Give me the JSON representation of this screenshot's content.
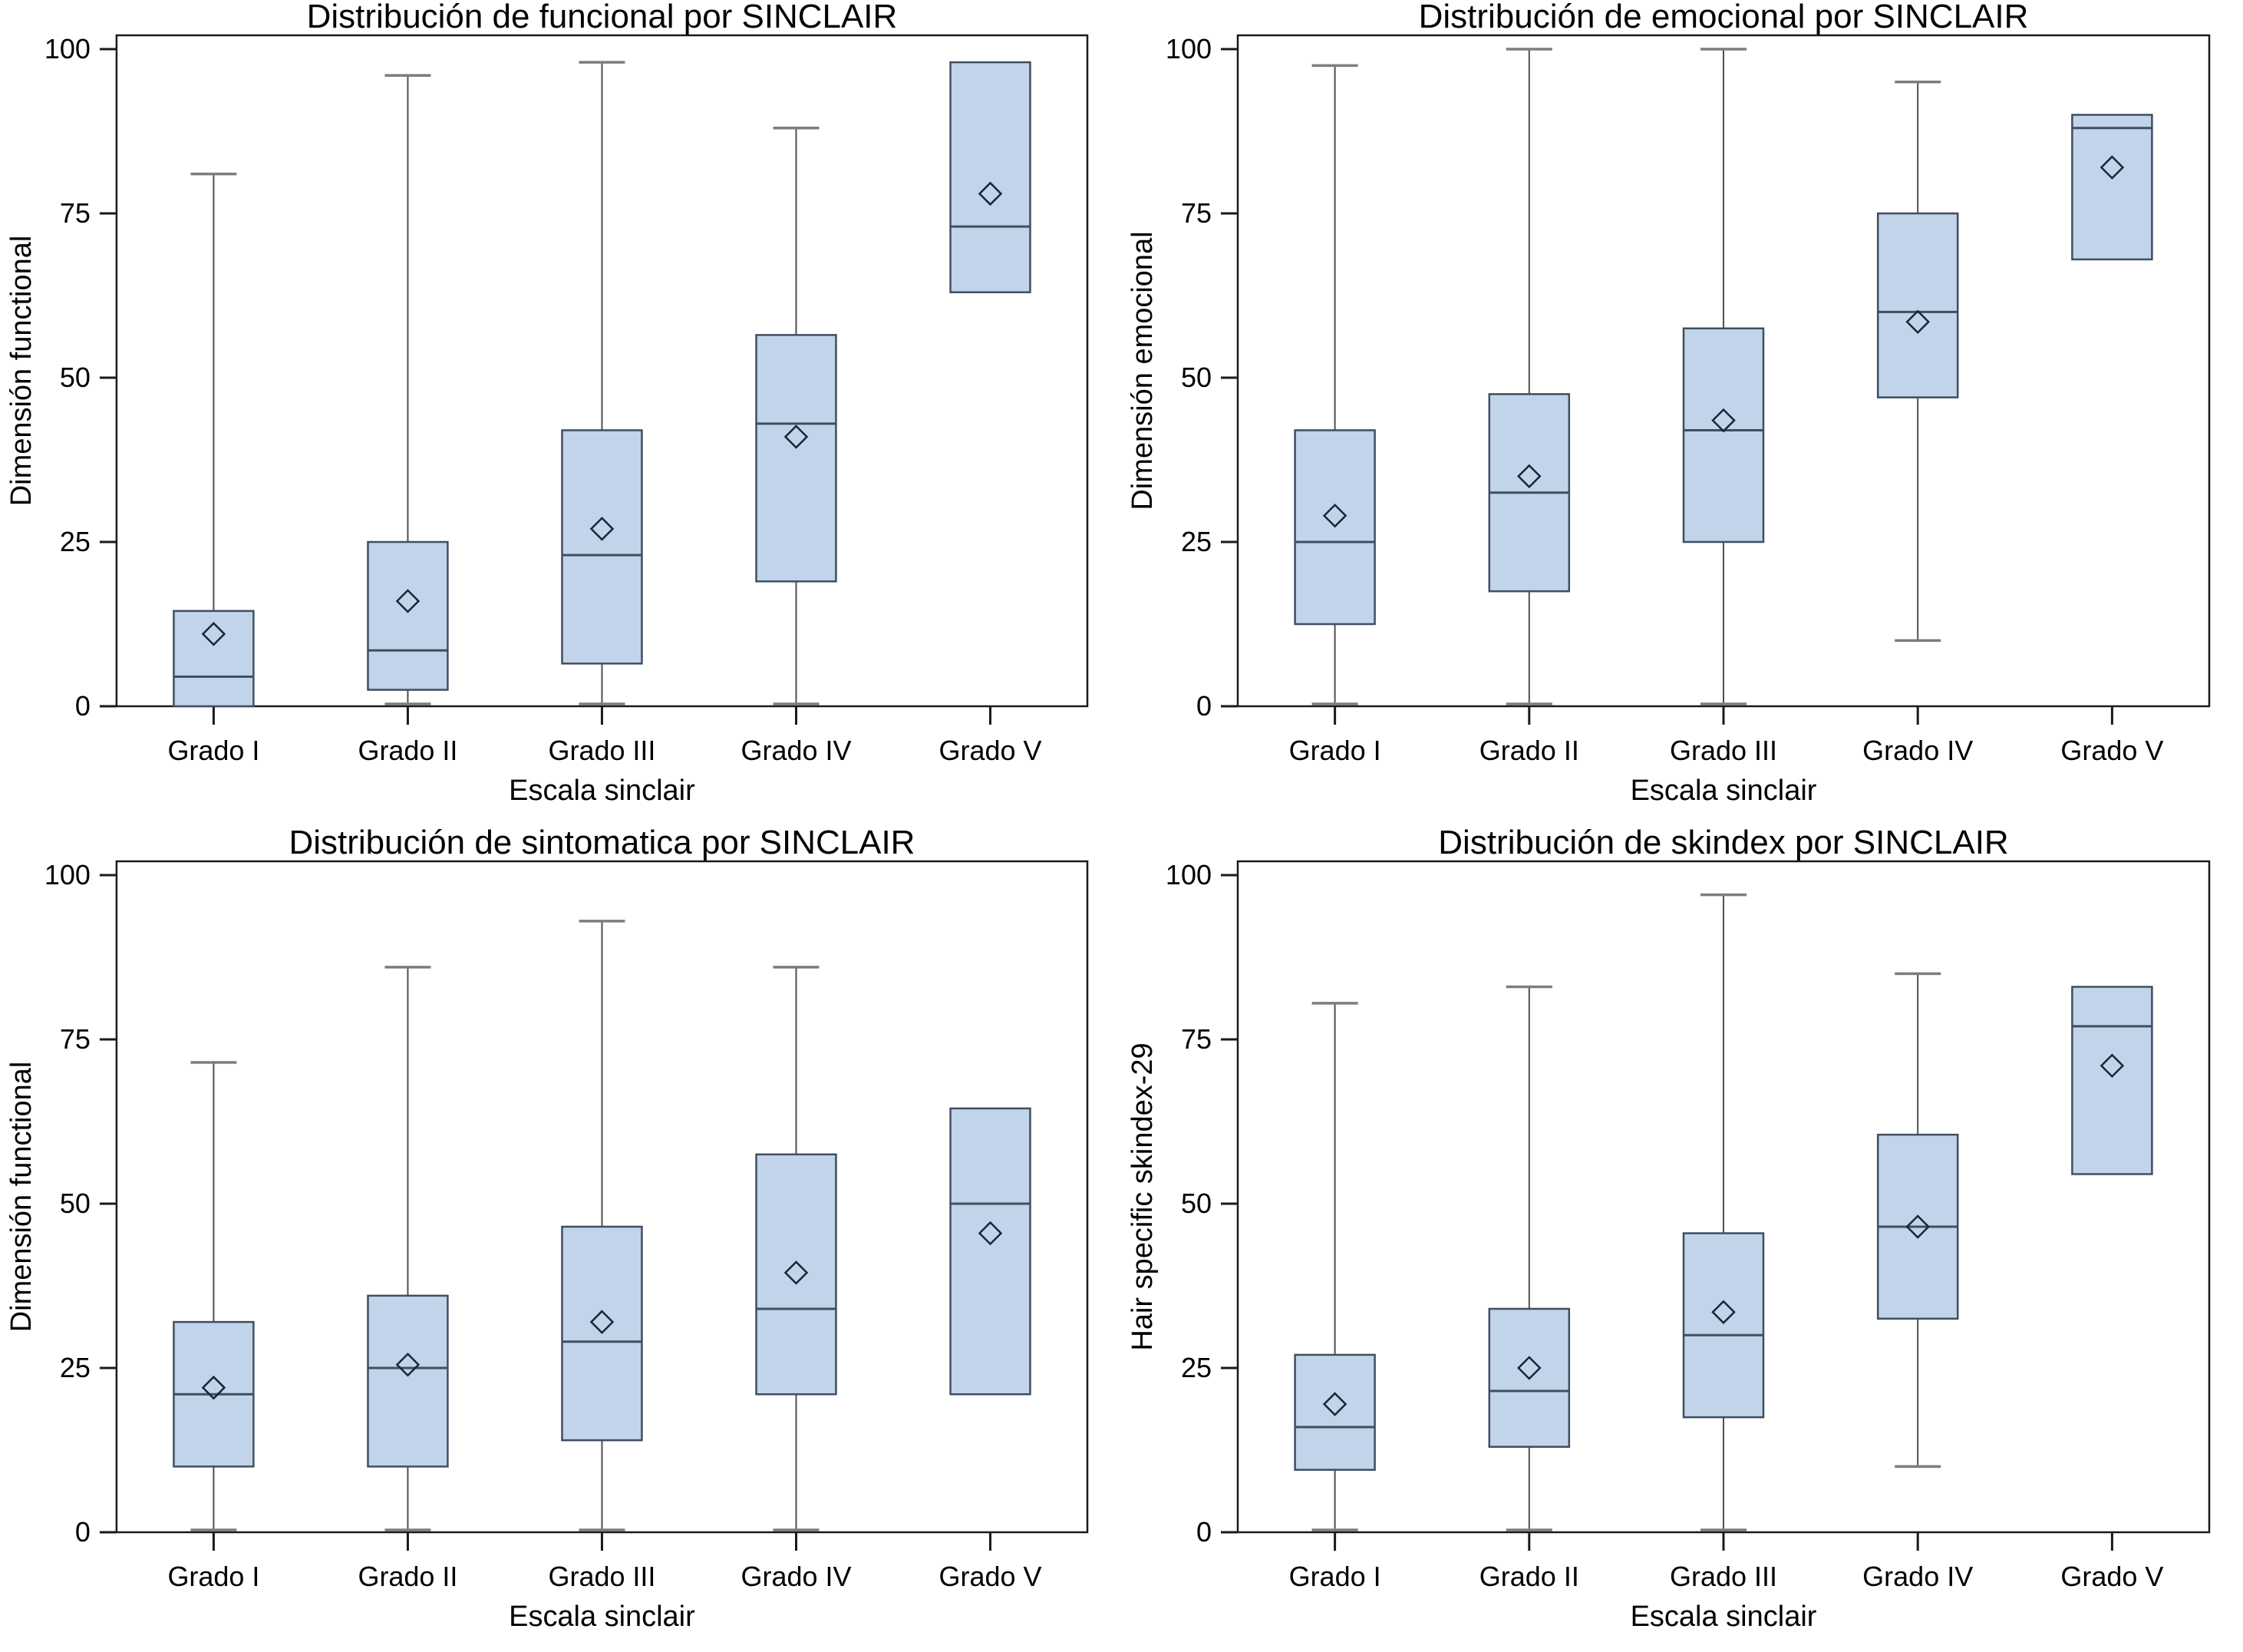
{
  "style": {
    "background": "#ffffff",
    "box_fill": "#c2d4ea",
    "box_stroke": "#3f4e61",
    "median_color": "#3f4e61",
    "mean_marker_color": "#17263a",
    "whisker_color": "#4f4f4f",
    "whisker_cap_color": "#7d7d7d",
    "axis_color": "#1a1a1a",
    "text_color": "#000000"
  },
  "chart_data": [
    {
      "type": "box",
      "title": "Distribución de funcional por SINCLAIR",
      "xlabel": "Escala sinclair",
      "ylabel": "Dimensión functional",
      "ylim": [
        0,
        100
      ],
      "yticks": [
        0,
        25,
        50,
        75,
        100
      ],
      "grid": false,
      "categories": [
        "Grado I",
        "Grado II",
        "Grado III",
        "Grado IV",
        "Grado V"
      ],
      "boxes": [
        {
          "category": "Grado I",
          "whisker_low": 0,
          "q1": 0,
          "median": 4.5,
          "q3": 14.5,
          "whisker_high": 81,
          "mean": 11
        },
        {
          "category": "Grado II",
          "whisker_low": 0,
          "q1": 2.5,
          "median": 8.5,
          "q3": 25,
          "whisker_high": 96,
          "mean": 16
        },
        {
          "category": "Grado III",
          "whisker_low": 0,
          "q1": 6.5,
          "median": 23,
          "q3": 42,
          "whisker_high": 98,
          "mean": 27
        },
        {
          "category": "Grado IV",
          "whisker_low": 0,
          "q1": 19,
          "median": 43,
          "q3": 56.5,
          "whisker_high": 88,
          "mean": 41
        },
        {
          "category": "Grado V",
          "whisker_low": 63,
          "q1": 63,
          "median": 73,
          "q3": 98,
          "whisker_high": 98,
          "mean": 78
        }
      ]
    },
    {
      "type": "box",
      "title": "Distribución de emocional por SINCLAIR",
      "xlabel": "Escala sinclair",
      "ylabel": "Dimensión emocional",
      "ylim": [
        0,
        100
      ],
      "yticks": [
        0,
        25,
        50,
        75,
        100
      ],
      "grid": false,
      "categories": [
        "Grado I",
        "Grado II",
        "Grado III",
        "Grado IV",
        "Grado V"
      ],
      "boxes": [
        {
          "category": "Grado I",
          "whisker_low": 0,
          "q1": 12.5,
          "median": 25,
          "q3": 42,
          "whisker_high": 97.5,
          "mean": 29
        },
        {
          "category": "Grado II",
          "whisker_low": 0,
          "q1": 17.5,
          "median": 32.5,
          "q3": 47.5,
          "whisker_high": 100,
          "mean": 35
        },
        {
          "category": "Grado III",
          "whisker_low": 0,
          "q1": 25,
          "median": 42,
          "q3": 57.5,
          "whisker_high": 100,
          "mean": 43.5
        },
        {
          "category": "Grado IV",
          "whisker_low": 10,
          "q1": 47,
          "median": 60,
          "q3": 75,
          "whisker_high": 95,
          "mean": 58.5
        },
        {
          "category": "Grado V",
          "whisker_low": 68,
          "q1": 68,
          "median": 88,
          "q3": 90,
          "whisker_high": 90,
          "mean": 82
        }
      ]
    },
    {
      "type": "box",
      "title": "Distribución de sintomatica por SINCLAIR",
      "xlabel": "Escala sinclair",
      "ylabel": "Dimensión functional",
      "ylim": [
        0,
        100
      ],
      "yticks": [
        0,
        25,
        50,
        75,
        100
      ],
      "grid": false,
      "categories": [
        "Grado I",
        "Grado II",
        "Grado III",
        "Grado IV",
        "Grado V"
      ],
      "boxes": [
        {
          "category": "Grado I",
          "whisker_low": 0,
          "q1": 10,
          "median": 21,
          "q3": 32,
          "whisker_high": 71.5,
          "mean": 22
        },
        {
          "category": "Grado II",
          "whisker_low": 0,
          "q1": 10,
          "median": 25,
          "q3": 36,
          "whisker_high": 86,
          "mean": 25.5
        },
        {
          "category": "Grado III",
          "whisker_low": 0,
          "q1": 14,
          "median": 29,
          "q3": 46.5,
          "whisker_high": 93,
          "mean": 32
        },
        {
          "category": "Grado IV",
          "whisker_low": 0,
          "q1": 21,
          "median": 34,
          "q3": 57.5,
          "whisker_high": 86,
          "mean": 39.5
        },
        {
          "category": "Grado V",
          "whisker_low": 21,
          "q1": 21,
          "median": 50,
          "q3": 64.5,
          "whisker_high": 64.5,
          "mean": 45.5
        }
      ]
    },
    {
      "type": "box",
      "title": "Distribución de skindex por SINCLAIR",
      "xlabel": "Escala sinclair",
      "ylabel": "Hair specific skindex-29",
      "ylim": [
        0,
        100
      ],
      "yticks": [
        0,
        25,
        50,
        75,
        100
      ],
      "grid": false,
      "categories": [
        "Grado I",
        "Grado II",
        "Grado III",
        "Grado IV",
        "Grado V"
      ],
      "boxes": [
        {
          "category": "Grado I",
          "whisker_low": 0,
          "q1": 9.5,
          "median": 16,
          "q3": 27,
          "whisker_high": 80.5,
          "mean": 19.5
        },
        {
          "category": "Grado II",
          "whisker_low": 0,
          "q1": 13,
          "median": 21.5,
          "q3": 34,
          "whisker_high": 83,
          "mean": 25
        },
        {
          "category": "Grado III",
          "whisker_low": 0,
          "q1": 17.5,
          "median": 30,
          "q3": 45.5,
          "whisker_high": 97,
          "mean": 33.5
        },
        {
          "category": "Grado IV",
          "whisker_low": 10,
          "q1": 32.5,
          "median": 46.5,
          "q3": 60.5,
          "whisker_high": 85,
          "mean": 46.5
        },
        {
          "category": "Grado V",
          "whisker_low": 54.5,
          "q1": 54.5,
          "median": 77,
          "q3": 83,
          "whisker_high": 83,
          "mean": 71
        }
      ]
    }
  ]
}
